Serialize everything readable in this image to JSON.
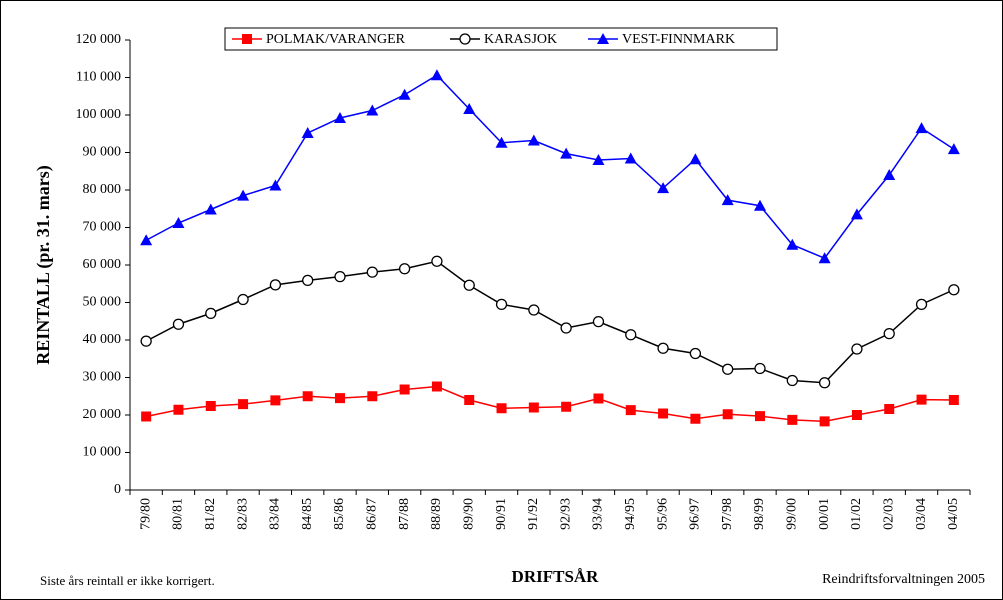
{
  "chart_data": {
    "type": "line",
    "y_label": "REINTALL (pr. 31. mars)",
    "x_label": "DRIFTSÅR",
    "annotations": [
      "Siste års reintall er ikke korrigert.",
      "Reindriftsforvaltningen 2005"
    ],
    "categories": [
      "79/80",
      "80/81",
      "81/82",
      "82/83",
      "83/84",
      "84/85",
      "85/86",
      "86/87",
      "87/88",
      "88/89",
      "89/90",
      "90/91",
      "91/92",
      "92/93",
      "93/94",
      "94/95",
      "95/96",
      "96/97",
      "97/98",
      "98/99",
      "99/00",
      "00/01",
      "01/02",
      "02/03",
      "03/04",
      "04/05"
    ],
    "series": [
      {
        "name": "POLMAK/VARANGER",
        "color": "#ff0000",
        "marker": "square",
        "values": [
          19600,
          21400,
          22400,
          22900,
          23900,
          25000,
          24500,
          25000,
          26800,
          27600,
          24000,
          21800,
          22000,
          22200,
          24400,
          21300,
          20400,
          19000,
          20200,
          19700,
          18700,
          18300,
          20000,
          21600,
          24100,
          24000
        ]
      },
      {
        "name": "KARASJOK",
        "color": "#000000",
        "marker": "circle",
        "values": [
          39700,
          44200,
          47100,
          50800,
          54700,
          55900,
          56900,
          58100,
          59000,
          61000,
          54600,
          49500,
          48000,
          43200,
          44900,
          41400,
          37800,
          36400,
          32200,
          32400,
          29200,
          28600,
          37600,
          41700,
          49500,
          53400
        ]
      },
      {
        "name": "VEST-FINNMARK",
        "color": "#0000ff",
        "marker": "triangle",
        "values": [
          66600,
          71200,
          74800,
          78500,
          81200,
          95200,
          99200,
          101200,
          105400,
          110600,
          101600,
          92600,
          93200,
          89700,
          88000,
          88400,
          80500,
          88200,
          77300,
          75800,
          65400,
          61800,
          73500,
          84000,
          96500,
          90900
        ]
      }
    ],
    "ylim": [
      0,
      120000
    ],
    "yticks": [
      0,
      {
        "value": 10000,
        "label": "10 000"
      },
      {
        "value": 20000,
        "label": "20 000"
      },
      {
        "value": 30000,
        "label": "30 000"
      },
      {
        "value": 40000,
        "label": "40 000"
      },
      {
        "value": 50000,
        "label": "50 000"
      },
      {
        "value": 60000,
        "label": "60 000"
      },
      {
        "value": 70000,
        "label": "70 000"
      },
      {
        "value": 80000,
        "label": "80 000"
      },
      {
        "value": 90000,
        "label": "90 000"
      },
      {
        "value": 100000,
        "label": "100 000"
      },
      {
        "value": 110000,
        "label": "110 000"
      },
      {
        "value": 120000,
        "label": "120 000"
      }
    ],
    "grid": false
  }
}
